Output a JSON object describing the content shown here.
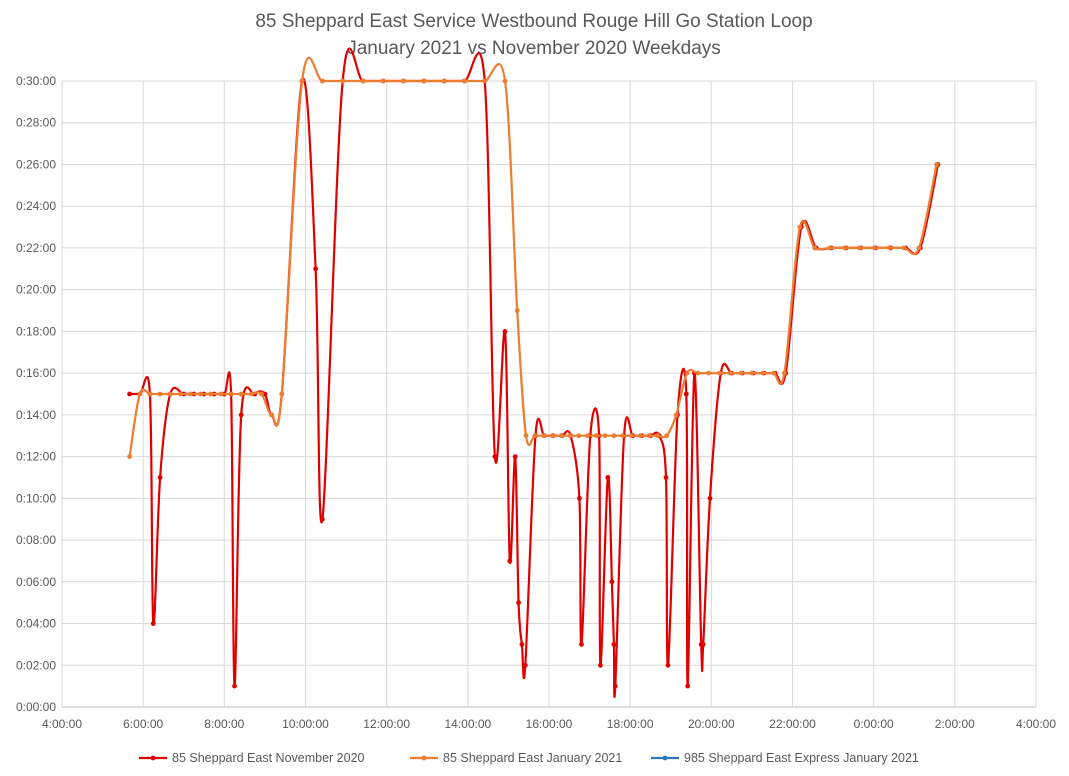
{
  "chart_data": {
    "type": "line",
    "title": [
      "85 Sheppard East Service Westbound Rouge Hill Go Station Loop",
      "January 2021 vs November 2020 Weekdays"
    ],
    "xlabel": "",
    "ylabel": "",
    "x_ticks": [
      "4:00:00",
      "6:00:00",
      "8:00:00",
      "10:00:00",
      "12:00:00",
      "14:00:00",
      "16:00:00",
      "18:00:00",
      "20:00:00",
      "22:00:00",
      "0:00:00",
      "2:00:00",
      "4:00:00"
    ],
    "y_ticks": [
      "0:00:00",
      "0:02:00",
      "0:04:00",
      "0:06:00",
      "0:08:00",
      "0:10:00",
      "0:12:00",
      "0:14:00",
      "0:16:00",
      "0:18:00",
      "0:20:00",
      "0:22:00",
      "0:24:00",
      "0:26:00",
      "0:28:00",
      "0:30:00"
    ],
    "xlim": [
      "4:00:00",
      "4:00:00 (next day)"
    ],
    "ylim": [
      "0:00:00",
      "0:30:00"
    ],
    "grid": true,
    "legend": "bottom",
    "series": [
      {
        "name": "85 Sheppard East November 2020",
        "color": "#e00000",
        "marker": "circle",
        "points": [
          [
            "5:40",
            "0:15:00"
          ],
          [
            "5:55",
            "0:15:00"
          ],
          [
            "6:10",
            "0:15:00"
          ],
          [
            "6:15",
            "0:04:00"
          ],
          [
            "6:25",
            "0:11:00"
          ],
          [
            "6:40",
            "0:15:00"
          ],
          [
            "7:00",
            "0:15:00"
          ],
          [
            "7:15",
            "0:15:00"
          ],
          [
            "7:30",
            "0:15:00"
          ],
          [
            "7:45",
            "0:15:00"
          ],
          [
            "8:00",
            "0:15:00"
          ],
          [
            "8:10",
            "0:15:00"
          ],
          [
            "8:15",
            "0:01:00"
          ],
          [
            "8:25",
            "0:14:00"
          ],
          [
            "8:45",
            "0:15:00"
          ],
          [
            "9:00",
            "0:15:00"
          ],
          [
            "9:10",
            "0:14:00"
          ],
          [
            "9:25",
            "0:15:00"
          ],
          [
            "9:55",
            "0:30:00"
          ],
          [
            "10:15",
            "0:21:00"
          ],
          [
            "10:25",
            "0:09:00"
          ],
          [
            "10:55",
            "0:30:00"
          ],
          [
            "11:25",
            "0:30:00"
          ],
          [
            "11:55",
            "0:30:00"
          ],
          [
            "12:25",
            "0:30:00"
          ],
          [
            "12:55",
            "0:30:00"
          ],
          [
            "13:25",
            "0:30:00"
          ],
          [
            "13:55",
            "0:30:00"
          ],
          [
            "14:25",
            "0:30:00"
          ],
          [
            "14:40",
            "0:12:00"
          ],
          [
            "14:55",
            "0:18:00"
          ],
          [
            "15:02",
            "0:07:00"
          ],
          [
            "15:10",
            "0:12:00"
          ],
          [
            "15:15",
            "0:05:00"
          ],
          [
            "15:20",
            "0:03:00"
          ],
          [
            "15:25",
            "0:02:00"
          ],
          [
            "15:40",
            "0:13:00"
          ],
          [
            "15:53",
            "0:13:00"
          ],
          [
            "16:06",
            "0:13:00"
          ],
          [
            "16:19",
            "0:13:00"
          ],
          [
            "16:32",
            "0:13:00"
          ],
          [
            "16:45",
            "0:10:00"
          ],
          [
            "16:48",
            "0:03:00"
          ],
          [
            "17:01",
            "0:13:00"
          ],
          [
            "17:14",
            "0:13:00"
          ],
          [
            "17:16",
            "0:02:00"
          ],
          [
            "17:27",
            "0:11:00"
          ],
          [
            "17:33",
            "0:06:00"
          ],
          [
            "17:36",
            "0:03:00"
          ],
          [
            "17:38",
            "0:01:00"
          ],
          [
            "17:51",
            "0:13:00"
          ],
          [
            "18:04",
            "0:13:00"
          ],
          [
            "18:17",
            "0:13:00"
          ],
          [
            "18:30",
            "0:13:00"
          ],
          [
            "18:43",
            "0:13:00"
          ],
          [
            "18:53",
            "0:11:00"
          ],
          [
            "18:56",
            "0:02:00"
          ],
          [
            "19:10",
            "0:14:00"
          ],
          [
            "19:23",
            "0:15:00"
          ],
          [
            "19:25",
            "0:01:00"
          ],
          [
            "19:35",
            "0:16:00"
          ],
          [
            "19:45",
            "0:03:00"
          ],
          [
            "19:48",
            "0:03:00"
          ],
          [
            "19:58",
            "0:10:00"
          ],
          [
            "20:14",
            "0:16:00"
          ],
          [
            "20:30",
            "0:16:00"
          ],
          [
            "20:46",
            "0:16:00"
          ],
          [
            "21:02",
            "0:16:00"
          ],
          [
            "21:18",
            "0:16:00"
          ],
          [
            "21:34",
            "0:16:00"
          ],
          [
            "21:50",
            "0:16:00"
          ],
          [
            "22:13",
            "0:23:00"
          ],
          [
            "22:35",
            "0:22:00"
          ],
          [
            "22:57",
            "0:22:00"
          ],
          [
            "23:19",
            "0:22:00"
          ],
          [
            "23:41",
            "0:22:00"
          ],
          [
            "0:03",
            "0:22:00"
          ],
          [
            "0:25",
            "0:22:00"
          ],
          [
            "0:47",
            "0:22:00"
          ],
          [
            "1:09",
            "0:22:00"
          ],
          [
            "1:35",
            "0:26:00"
          ]
        ]
      },
      {
        "name": "85 Sheppard East January 2021",
        "color": "#ed7d31",
        "marker": "circle",
        "points": [
          [
            "5:40",
            "0:12:00"
          ],
          [
            "5:55",
            "0:15:00"
          ],
          [
            "6:10",
            "0:15:00"
          ],
          [
            "6:25",
            "0:15:00"
          ],
          [
            "6:40",
            "0:15:00"
          ],
          [
            "6:55",
            "0:15:00"
          ],
          [
            "7:10",
            "0:15:00"
          ],
          [
            "7:25",
            "0:15:00"
          ],
          [
            "7:40",
            "0:15:00"
          ],
          [
            "7:55",
            "0:15:00"
          ],
          [
            "8:10",
            "0:15:00"
          ],
          [
            "8:25",
            "0:15:00"
          ],
          [
            "8:40",
            "0:15:00"
          ],
          [
            "8:55",
            "0:15:00"
          ],
          [
            "9:10",
            "0:14:00"
          ],
          [
            "9:25",
            "0:15:00"
          ],
          [
            "9:55",
            "0:30:00"
          ],
          [
            "10:25",
            "0:30:00"
          ],
          [
            "10:55",
            "0:30:00"
          ],
          [
            "11:25",
            "0:30:00"
          ],
          [
            "11:55",
            "0:30:00"
          ],
          [
            "12:25",
            "0:30:00"
          ],
          [
            "12:55",
            "0:30:00"
          ],
          [
            "13:25",
            "0:30:00"
          ],
          [
            "13:55",
            "0:30:00"
          ],
          [
            "14:25",
            "0:30:00"
          ],
          [
            "14:55",
            "0:30:00"
          ],
          [
            "15:13",
            "0:19:00"
          ],
          [
            "15:26",
            "0:13:00"
          ],
          [
            "15:39",
            "0:13:00"
          ],
          [
            "15:52",
            "0:13:00"
          ],
          [
            "16:05",
            "0:13:00"
          ],
          [
            "16:18",
            "0:13:00"
          ],
          [
            "16:31",
            "0:13:00"
          ],
          [
            "16:44",
            "0:13:00"
          ],
          [
            "16:57",
            "0:13:00"
          ],
          [
            "17:10",
            "0:13:00"
          ],
          [
            "17:23",
            "0:13:00"
          ],
          [
            "17:36",
            "0:13:00"
          ],
          [
            "17:49",
            "0:13:00"
          ],
          [
            "18:02",
            "0:13:00"
          ],
          [
            "18:15",
            "0:13:00"
          ],
          [
            "18:28",
            "0:13:00"
          ],
          [
            "18:41",
            "0:13:00"
          ],
          [
            "18:54",
            "0:13:00"
          ],
          [
            "19:08",
            "0:14:00"
          ],
          [
            "19:24",
            "0:16:00"
          ],
          [
            "19:40",
            "0:16:00"
          ],
          [
            "19:56",
            "0:16:00"
          ],
          [
            "20:12",
            "0:16:00"
          ],
          [
            "20:28",
            "0:16:00"
          ],
          [
            "20:44",
            "0:16:00"
          ],
          [
            "21:00",
            "0:16:00"
          ],
          [
            "21:16",
            "0:16:00"
          ],
          [
            "21:32",
            "0:16:00"
          ],
          [
            "21:48",
            "0:16:00"
          ],
          [
            "22:11",
            "0:23:00"
          ],
          [
            "22:33",
            "0:22:00"
          ],
          [
            "22:55",
            "0:22:00"
          ],
          [
            "23:17",
            "0:22:00"
          ],
          [
            "23:39",
            "0:22:00"
          ],
          [
            "0:01",
            "0:22:00"
          ],
          [
            "0:23",
            "0:22:00"
          ],
          [
            "0:45",
            "0:22:00"
          ],
          [
            "1:07",
            "0:22:00"
          ],
          [
            "1:33",
            "0:26:00"
          ]
        ]
      },
      {
        "name": "985 Sheppard East Express January 2021",
        "color": "#2e75b6",
        "marker": "circle",
        "points": []
      }
    ]
  }
}
